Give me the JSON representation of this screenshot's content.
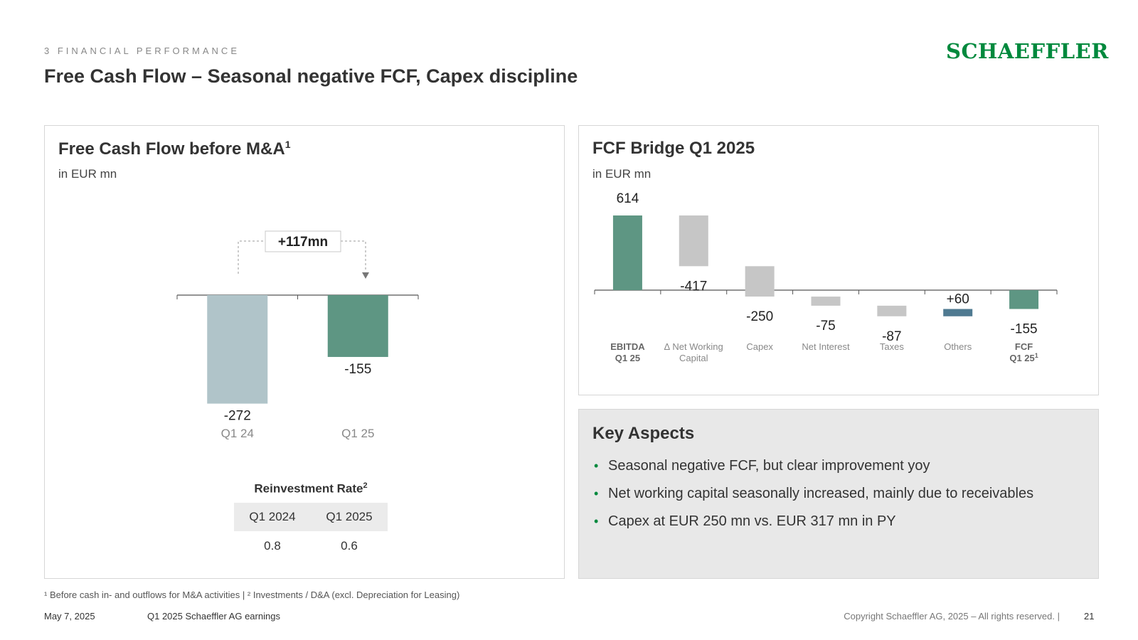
{
  "header": {
    "section": "3 FINANCIAL PERFORMANCE",
    "logo": "SCHAEFFLER",
    "title": "Free Cash Flow – Seasonal negative FCF, Capex discipline"
  },
  "fcf_panel": {
    "title": "Free Cash Flow before M&A",
    "title_sup": "1",
    "unit": "in EUR mn",
    "delta_label": "+117mn"
  },
  "reinvestment": {
    "title": "Reinvestment Rate",
    "title_sup": "2",
    "headers": [
      "Q1 2024",
      "Q1 2025"
    ],
    "values": [
      "0.8",
      "0.6"
    ]
  },
  "bridge_panel": {
    "title": "FCF Bridge Q1 2025",
    "unit": "in EUR mn"
  },
  "key_aspects": {
    "title": "Key Aspects",
    "items": [
      "Seasonal negative FCF, but clear improvement yoy",
      "Net working capital seasonally increased, mainly due to receivables",
      "Capex at EUR 250 mn vs. EUR 317 mn in PY"
    ]
  },
  "chart_data": [
    {
      "type": "bar",
      "title": "Free Cash Flow before M&A",
      "ylabel": "in EUR mn",
      "categories": [
        "Q1 24",
        "Q1 25"
      ],
      "values": [
        -272,
        -155
      ],
      "data_labels": [
        "-272",
        "-155"
      ],
      "colors": [
        "#b0c4c9",
        "#5e9683"
      ],
      "annotation": "+117mn"
    },
    {
      "type": "bar",
      "subtype": "waterfall",
      "title": "FCF Bridge Q1 2025",
      "ylabel": "in EUR mn",
      "categories": [
        {
          "line1": "EBITDA",
          "line2": "Q1 25",
          "sup": "",
          "bold": true
        },
        {
          "line1": "∆ Net Working",
          "line2": "Capital",
          "sup": "",
          "bold": false
        },
        {
          "line1": "Capex",
          "line2": "",
          "sup": "",
          "bold": false
        },
        {
          "line1": "Net Interest",
          "line2": "",
          "sup": "",
          "bold": false
        },
        {
          "line1": "Taxes",
          "line2": "",
          "sup": "",
          "bold": false
        },
        {
          "line1": "Others",
          "line2": "",
          "sup": "",
          "bold": false
        },
        {
          "line1": "FCF",
          "line2": "Q1 25",
          "sup": "1",
          "bold": true
        }
      ],
      "values": [
        614,
        -417,
        -250,
        -75,
        -87,
        60,
        -155
      ],
      "data_labels": [
        "614",
        "-417",
        "-250",
        "-75",
        "-87",
        "+60",
        "-155"
      ],
      "measure": [
        "absolute",
        "relative",
        "relative",
        "relative",
        "relative",
        "relative",
        "total"
      ],
      "colors": {
        "total": "#5e9683",
        "decrease": "#c6c6c6",
        "increase": "#4f7a91"
      }
    }
  ],
  "footer": {
    "footnote": "¹ Before cash in- and outflows for M&A activities | ² Investments / D&A (excl. Depreciation for Leasing)",
    "date": "May 7, 2025",
    "doc": "Q1 2025 Schaeffler AG earnings",
    "copyright": "Copyright Schaeffler AG, 2025 – All rights reserved. |",
    "page": "21"
  }
}
